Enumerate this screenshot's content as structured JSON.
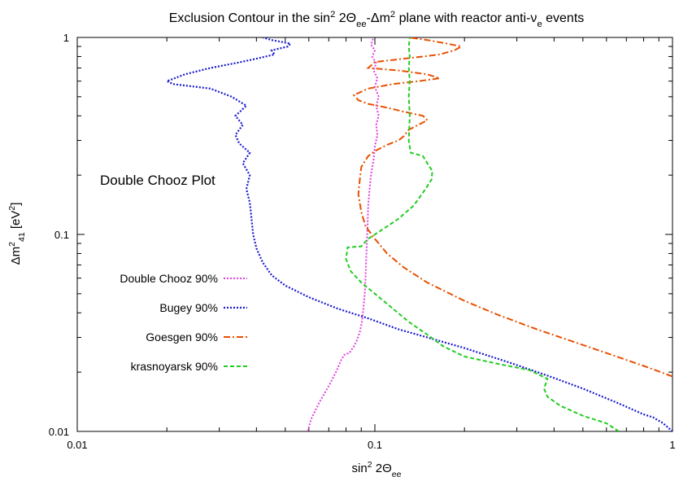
{
  "chart_data": {
    "type": "line",
    "title_parts": [
      "Exclusion Contour in the sin",
      "2",
      " 2Θ",
      "ee",
      "-Δm",
      "2",
      " plane with reactor anti-ν",
      "e",
      " events"
    ],
    "xlabel_parts": [
      "sin",
      "2",
      " 2Θ",
      "ee"
    ],
    "ylabel_parts": [
      "Δm",
      "2",
      "41",
      " [eV",
      "2",
      "]"
    ],
    "x_scale": "log",
    "y_scale": "log",
    "xlim": [
      0.01,
      1
    ],
    "ylim": [
      0.01,
      1
    ],
    "x_ticks": [
      {
        "value": 0.01,
        "label": "0.01"
      },
      {
        "value": 0.1,
        "label": "0.1"
      },
      {
        "value": 1,
        "label": "1"
      }
    ],
    "y_ticks": [
      {
        "value": 0.01,
        "label": "0.01"
      },
      {
        "value": 0.1,
        "label": "0.1"
      },
      {
        "value": 1,
        "label": "1"
      }
    ],
    "annotation": "Double Chooz Plot",
    "legend_position": "left",
    "grid": false,
    "series": [
      {
        "name": "Double Chooz 90%",
        "color": "#e040e0",
        "dash": "2,2",
        "width": 2,
        "points": [
          [
            0.0595,
            0.01
          ],
          [
            0.061,
            0.0115
          ],
          [
            0.065,
            0.014
          ],
          [
            0.07,
            0.017
          ],
          [
            0.074,
            0.02
          ],
          [
            0.077,
            0.023
          ],
          [
            0.079,
            0.0245
          ],
          [
            0.082,
            0.025
          ],
          [
            0.085,
            0.027
          ],
          [
            0.087,
            0.029
          ],
          [
            0.089,
            0.032
          ],
          [
            0.0905,
            0.036
          ],
          [
            0.0915,
            0.042
          ],
          [
            0.0925,
            0.05
          ],
          [
            0.093,
            0.06
          ],
          [
            0.0935,
            0.075
          ],
          [
            0.094,
            0.09
          ],
          [
            0.0945,
            0.11
          ],
          [
            0.095,
            0.14
          ],
          [
            0.096,
            0.17
          ],
          [
            0.097,
            0.2
          ],
          [
            0.099,
            0.24
          ],
          [
            0.1,
            0.28
          ],
          [
            0.102,
            0.32
          ],
          [
            0.101,
            0.36
          ],
          [
            0.103,
            0.4
          ],
          [
            0.101,
            0.45
          ],
          [
            0.103,
            0.5
          ],
          [
            0.1,
            0.56
          ],
          [
            0.102,
            0.62
          ],
          [
            0.099,
            0.68
          ],
          [
            0.101,
            0.74
          ],
          [
            0.098,
            0.8
          ],
          [
            0.1,
            0.86
          ],
          [
            0.097,
            0.92
          ],
          [
            0.099,
            1.0
          ]
        ]
      },
      {
        "name": "Bugey 90%",
        "color": "#1a1ad0",
        "dash": "2,2",
        "width": 2.2,
        "points": [
          [
            1.0,
            0.01
          ],
          [
            0.93,
            0.011
          ],
          [
            0.86,
            0.0118
          ],
          [
            0.8,
            0.0122
          ],
          [
            0.65,
            0.014
          ],
          [
            0.5,
            0.0165
          ],
          [
            0.38,
            0.0192
          ],
          [
            0.28,
            0.0225
          ],
          [
            0.2,
            0.0265
          ],
          [
            0.15,
            0.03
          ],
          [
            0.12,
            0.033
          ],
          [
            0.095,
            0.0375
          ],
          [
            0.075,
            0.042
          ],
          [
            0.06,
            0.048
          ],
          [
            0.05,
            0.055
          ],
          [
            0.045,
            0.062
          ],
          [
            0.042,
            0.072
          ],
          [
            0.04,
            0.085
          ],
          [
            0.039,
            0.1
          ],
          [
            0.0385,
            0.12
          ],
          [
            0.038,
            0.145
          ],
          [
            0.037,
            0.17
          ],
          [
            0.038,
            0.2
          ],
          [
            0.036,
            0.23
          ],
          [
            0.038,
            0.26
          ],
          [
            0.035,
            0.29
          ],
          [
            0.034,
            0.32
          ],
          [
            0.036,
            0.36
          ],
          [
            0.034,
            0.4
          ],
          [
            0.037,
            0.45
          ],
          [
            0.033,
            0.5
          ],
          [
            0.028,
            0.55
          ],
          [
            0.021,
            0.58
          ],
          [
            0.02,
            0.6
          ],
          [
            0.023,
            0.65
          ],
          [
            0.028,
            0.7
          ],
          [
            0.034,
            0.74
          ],
          [
            0.04,
            0.78
          ],
          [
            0.046,
            0.82
          ],
          [
            0.045,
            0.86
          ],
          [
            0.051,
            0.9
          ],
          [
            0.052,
            0.93
          ],
          [
            0.045,
            0.97
          ],
          [
            0.042,
            1.0
          ]
        ]
      },
      {
        "name": "Goesgen 90%",
        "color": "#e85000",
        "dash": "8,3,2,3",
        "width": 2,
        "points": [
          [
            1.0,
            0.019
          ],
          [
            0.8,
            0.0215
          ],
          [
            0.6,
            0.025
          ],
          [
            0.45,
            0.029
          ],
          [
            0.35,
            0.033
          ],
          [
            0.26,
            0.039
          ],
          [
            0.2,
            0.046
          ],
          [
            0.15,
            0.057
          ],
          [
            0.125,
            0.068
          ],
          [
            0.11,
            0.08
          ],
          [
            0.1,
            0.095
          ],
          [
            0.093,
            0.11
          ],
          [
            0.09,
            0.13
          ],
          [
            0.088,
            0.16
          ],
          [
            0.089,
            0.19
          ],
          [
            0.09,
            0.22
          ],
          [
            0.095,
            0.25
          ],
          [
            0.1,
            0.265
          ],
          [
            0.11,
            0.285
          ],
          [
            0.12,
            0.3
          ],
          [
            0.125,
            0.315
          ],
          [
            0.13,
            0.34
          ],
          [
            0.14,
            0.36
          ],
          [
            0.15,
            0.38
          ],
          [
            0.145,
            0.4
          ],
          [
            0.125,
            0.42
          ],
          [
            0.11,
            0.44
          ],
          [
            0.095,
            0.46
          ],
          [
            0.088,
            0.48
          ],
          [
            0.085,
            0.51
          ],
          [
            0.095,
            0.55
          ],
          [
            0.115,
            0.58
          ],
          [
            0.14,
            0.6
          ],
          [
            0.165,
            0.62
          ],
          [
            0.15,
            0.65
          ],
          [
            0.12,
            0.68
          ],
          [
            0.095,
            0.7
          ],
          [
            0.1,
            0.75
          ],
          [
            0.125,
            0.78
          ],
          [
            0.145,
            0.8
          ],
          [
            0.165,
            0.82
          ],
          [
            0.185,
            0.86
          ],
          [
            0.195,
            0.9
          ],
          [
            0.175,
            0.93
          ],
          [
            0.15,
            0.97
          ],
          [
            0.13,
            1.0
          ]
        ]
      },
      {
        "name": "krasnoyarsk 90%",
        "color": "#22cc22",
        "dash": "5,3",
        "width": 2,
        "points": [
          [
            0.66,
            0.01
          ],
          [
            0.6,
            0.011
          ],
          [
            0.5,
            0.012
          ],
          [
            0.42,
            0.0135
          ],
          [
            0.38,
            0.015
          ],
          [
            0.37,
            0.0165
          ],
          [
            0.38,
            0.0185
          ],
          [
            0.33,
            0.0205
          ],
          [
            0.26,
            0.022
          ],
          [
            0.2,
            0.024
          ],
          [
            0.17,
            0.027
          ],
          [
            0.15,
            0.031
          ],
          [
            0.13,
            0.036
          ],
          [
            0.115,
            0.042
          ],
          [
            0.1,
            0.05
          ],
          [
            0.09,
            0.057
          ],
          [
            0.083,
            0.065
          ],
          [
            0.08,
            0.075
          ],
          [
            0.081,
            0.086
          ],
          [
            0.09,
            0.087
          ],
          [
            0.095,
            0.095
          ],
          [
            0.105,
            0.105
          ],
          [
            0.12,
            0.12
          ],
          [
            0.135,
            0.14
          ],
          [
            0.148,
            0.17
          ],
          [
            0.155,
            0.19
          ],
          [
            0.156,
            0.21
          ],
          [
            0.15,
            0.23
          ],
          [
            0.145,
            0.25
          ],
          [
            0.132,
            0.26
          ],
          [
            0.13,
            0.3
          ],
          [
            0.131,
            0.4
          ],
          [
            0.13,
            0.5
          ],
          [
            0.131,
            0.6
          ],
          [
            0.13,
            0.7
          ],
          [
            0.131,
            0.8
          ],
          [
            0.13,
            0.9
          ],
          [
            0.131,
            1.0
          ]
        ]
      }
    ]
  }
}
